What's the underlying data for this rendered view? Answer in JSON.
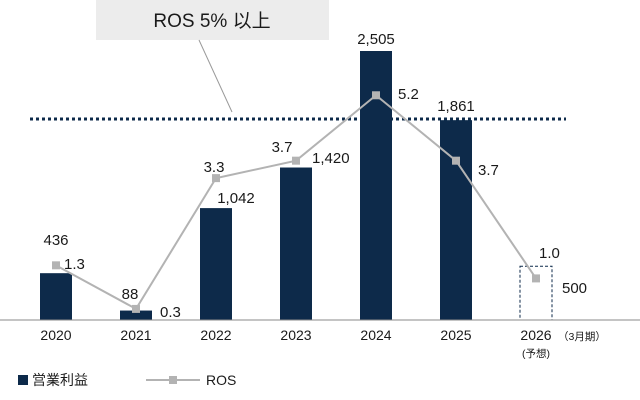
{
  "chart_data": {
    "type": "bar",
    "categories": [
      "2020",
      "2021",
      "2022",
      "2023",
      "2024",
      "2025",
      "2026"
    ],
    "forecast_note": "（3月期）",
    "forecast_sub": "(予想)",
    "series": [
      {
        "name": "営業利益",
        "type": "bar",
        "values": [
          436,
          88,
          1042,
          1420,
          2505,
          1861,
          500
        ],
        "labels": [
          "436",
          "88",
          "1,042",
          "1,420",
          "2,505",
          "1,861",
          "500"
        ],
        "forecast_index": 6,
        "color": "#0d2a4a"
      },
      {
        "name": "ROS",
        "type": "line",
        "values": [
          1.3,
          0.3,
          3.3,
          3.7,
          5.2,
          3.7,
          1.0
        ],
        "labels": [
          "1.3",
          "0.3",
          "3.3",
          "3.7",
          "5.2",
          "3.7",
          "1.0"
        ],
        "color": "#b3b3b3"
      }
    ],
    "threshold": {
      "label": "ROS 5% 以上",
      "value": 5
    },
    "legend_position": "bottom-left",
    "grid": false
  }
}
